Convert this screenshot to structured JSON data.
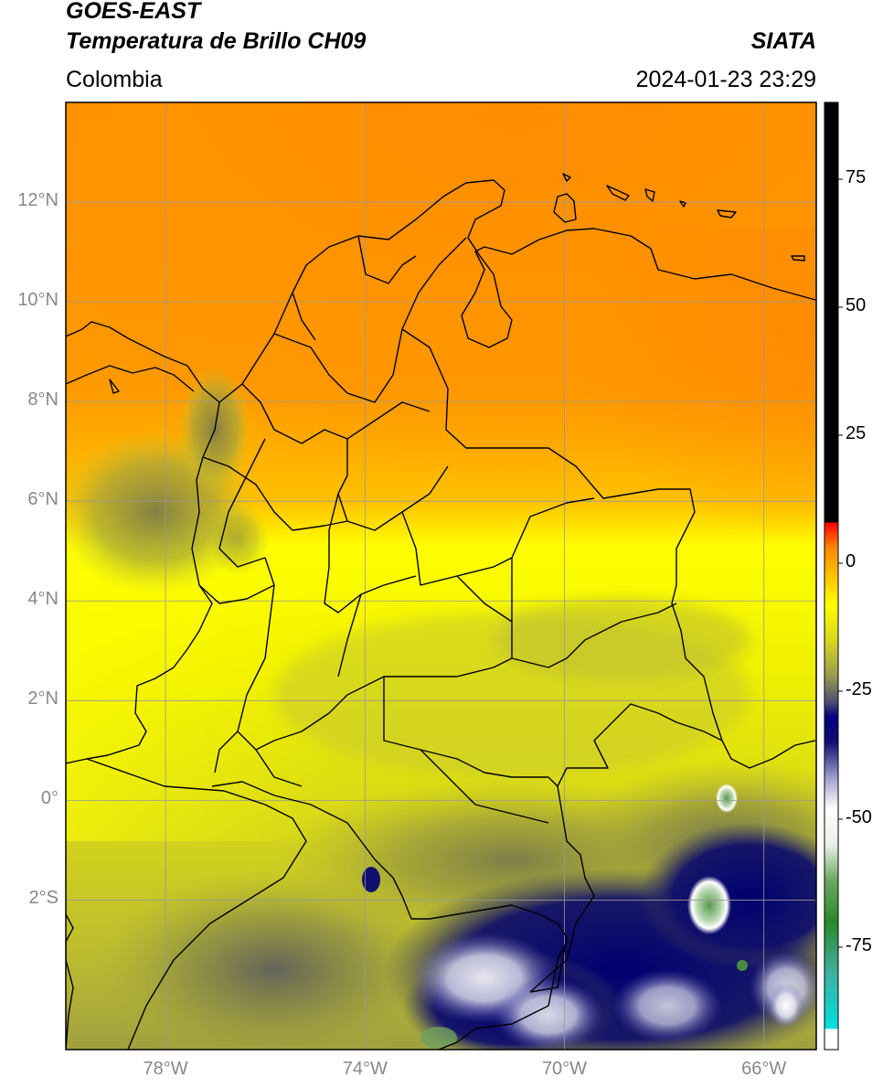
{
  "header": {
    "title_line1": "GOES-EAST",
    "title_line2": "Temperatura de Brillo CH09",
    "organization": "SIATA",
    "region": "Colombia",
    "datetime": "2024-01-23 23:29"
  },
  "map_axes": {
    "lon_range": [
      -80.0,
      -64.95
    ],
    "lat_range": [
      -5.0,
      14.0
    ],
    "lat_ticks": [
      {
        "value": 12,
        "label": "12°N"
      },
      {
        "value": 10,
        "label": "10°N"
      },
      {
        "value": 8,
        "label": "8°N"
      },
      {
        "value": 6,
        "label": "6°N"
      },
      {
        "value": 4,
        "label": "4°N"
      },
      {
        "value": 2,
        "label": "2°N"
      },
      {
        "value": 0,
        "label": "0°"
      },
      {
        "value": -2,
        "label": "2°S"
      }
    ],
    "lon_ticks": [
      {
        "value": -78,
        "label": "78°W"
      },
      {
        "value": -74,
        "label": "74°W"
      },
      {
        "value": -70,
        "label": "70°W"
      },
      {
        "value": -66,
        "label": "66°W"
      }
    ],
    "grid": true
  },
  "colorbar": {
    "range": [
      -95,
      90
    ],
    "ticks": [
      {
        "value": 75,
        "label": "75"
      },
      {
        "value": 50,
        "label": "50"
      },
      {
        "value": 25,
        "label": "25"
      },
      {
        "value": 0,
        "label": "0"
      },
      {
        "value": -25,
        "label": "-25"
      },
      {
        "value": -50,
        "label": "-50"
      },
      {
        "value": -75,
        "label": "-75"
      }
    ],
    "stops": [
      {
        "value": -95,
        "color": "#ffffff"
      },
      {
        "value": -91,
        "color": "#ffffff"
      },
      {
        "value": -90.9,
        "color": "#00e0e0"
      },
      {
        "value": -80,
        "color": "#40b0a0"
      },
      {
        "value": -70,
        "color": "#2a8a2a"
      },
      {
        "value": -62,
        "color": "#6aa860"
      },
      {
        "value": -55,
        "color": "#e8f0e8"
      },
      {
        "value": -48,
        "color": "#ffffff"
      },
      {
        "value": -42,
        "color": "#a0a0d0"
      },
      {
        "value": -35,
        "color": "#101070"
      },
      {
        "value": -30,
        "color": "#000080"
      },
      {
        "value": -27,
        "color": "#505070"
      },
      {
        "value": -22,
        "color": "#9a9a50"
      },
      {
        "value": -15,
        "color": "#d8d820"
      },
      {
        "value": -8,
        "color": "#ffff00"
      },
      {
        "value": -3,
        "color": "#ffc800"
      },
      {
        "value": 3,
        "color": "#ff8800"
      },
      {
        "value": 7.9,
        "color": "#ff0000"
      },
      {
        "value": 8,
        "color": "#000000"
      },
      {
        "value": 90,
        "color": "#000000"
      }
    ]
  },
  "colors": {
    "warm_orange": "#ff9000",
    "yellow": "#ffff00",
    "olive": "#c8c830",
    "deep_convection_navy": "#00007a",
    "grid_line": "#999999",
    "border_line": "#000000"
  }
}
